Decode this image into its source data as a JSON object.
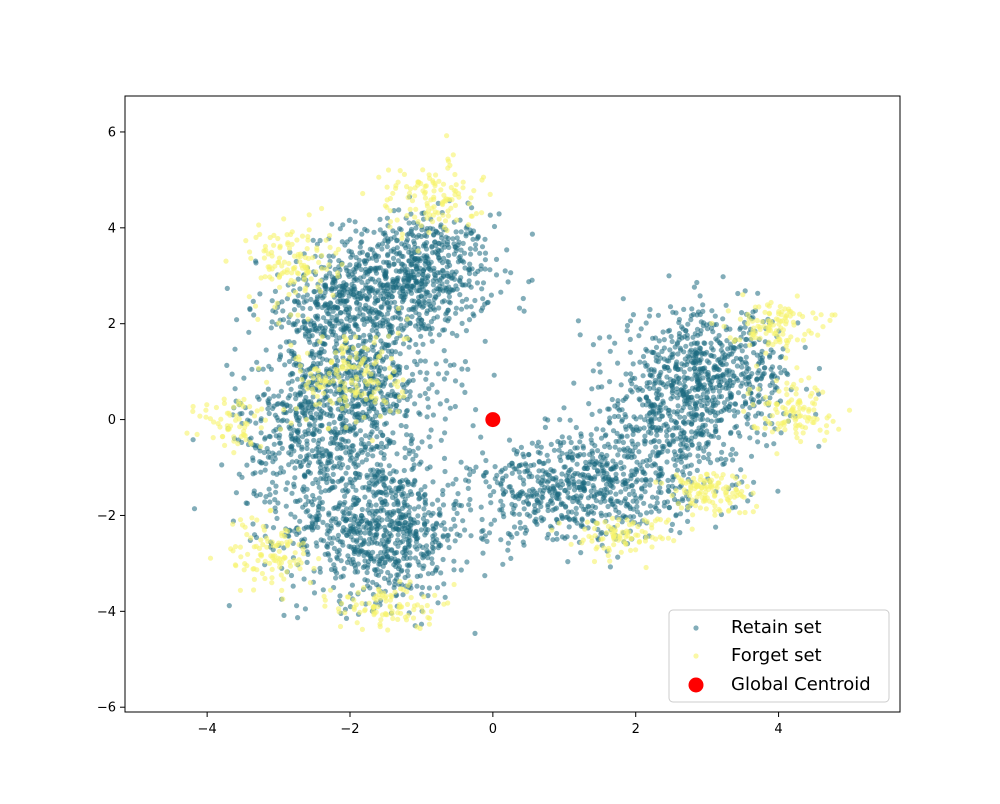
{
  "chart_data": {
    "type": "scatter",
    "title": "",
    "xlabel": "",
    "ylabel": "",
    "xlim": [
      -5.15,
      5.7
    ],
    "ylim": [
      -6.1,
      6.75
    ],
    "x_ticks": [
      -4,
      -2,
      0,
      2,
      4
    ],
    "y_ticks": [
      -6,
      -4,
      -2,
      0,
      2,
      4,
      6
    ],
    "grid": false,
    "legend": "lower-right",
    "series": [
      {
        "name": "Retain set",
        "color": "#1b6a80",
        "marker": "circle",
        "clusters": [
          {
            "center": [
              -1.1,
              3.0
            ],
            "spread": [
              0.55,
              0.65
            ],
            "count": 700
          },
          {
            "center": [
              -1.6,
              -2.3
            ],
            "spread": [
              0.65,
              0.75
            ],
            "count": 800
          },
          {
            "center": [
              -2.4,
              -0.2
            ],
            "spread": [
              0.6,
              0.9
            ],
            "count": 600
          },
          {
            "center": [
              -1.8,
              0.8
            ],
            "spread": [
              0.6,
              0.7
            ],
            "count": 400
          },
          {
            "center": [
              -2.2,
              2.3
            ],
            "spread": [
              0.55,
              0.55
            ],
            "count": 350
          },
          {
            "center": [
              3.0,
              0.9
            ],
            "spread": [
              0.6,
              0.7
            ],
            "count": 700
          },
          {
            "center": [
              1.2,
              -1.5
            ],
            "spread": [
              0.75,
              0.55
            ],
            "count": 650
          },
          {
            "center": [
              2.4,
              -0.2
            ],
            "spread": [
              0.5,
              0.6
            ],
            "count": 300
          }
        ]
      },
      {
        "name": "Forget set",
        "color": "#f7f36b",
        "marker": "circle",
        "clusters": [
          {
            "center": [
              -0.9,
              4.6
            ],
            "spread": [
              0.35,
              0.4
            ],
            "count": 120
          },
          {
            "center": [
              -2.8,
              3.3
            ],
            "spread": [
              0.3,
              0.4
            ],
            "count": 120
          },
          {
            "center": [
              -2.0,
              0.9
            ],
            "spread": [
              0.4,
              0.55
            ],
            "count": 170
          },
          {
            "center": [
              -3.6,
              -0.1
            ],
            "spread": [
              0.25,
              0.35
            ],
            "count": 60
          },
          {
            "center": [
              -3.1,
              -2.8
            ],
            "spread": [
              0.3,
              0.4
            ],
            "count": 100
          },
          {
            "center": [
              -1.5,
              -3.9
            ],
            "spread": [
              0.35,
              0.25
            ],
            "count": 100
          },
          {
            "center": [
              3.9,
              2.0
            ],
            "spread": [
              0.3,
              0.25
            ],
            "count": 110
          },
          {
            "center": [
              4.2,
              0.2
            ],
            "spread": [
              0.3,
              0.3
            ],
            "count": 110
          },
          {
            "center": [
              3.0,
              -1.5
            ],
            "spread": [
              0.3,
              0.25
            ],
            "count": 120
          },
          {
            "center": [
              1.8,
              -2.4
            ],
            "spread": [
              0.35,
              0.2
            ],
            "count": 90
          }
        ]
      },
      {
        "name": "Global Centroid",
        "color": "#ff0000",
        "marker": "circle",
        "points": [
          [
            0,
            0
          ]
        ]
      }
    ]
  }
}
